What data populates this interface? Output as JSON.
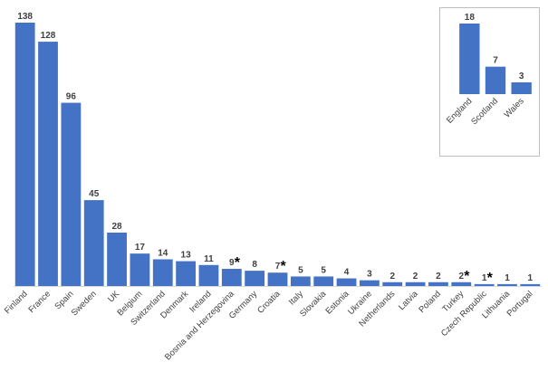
{
  "chart_data": [
    {
      "type": "bar",
      "categories": [
        "Finland",
        "France",
        "Spain",
        "Sweden",
        "UK",
        "Belgium",
        "Switzerland",
        "Denmark",
        "Ireland",
        "Bosnia and Herzegovina",
        "Germany",
        "Croatia",
        "Italy",
        "Slovakia",
        "Estonia",
        "Ukraine",
        "Netherlands",
        "Latvia",
        "Poland",
        "Turkey",
        "Czech Republic",
        "Lithuania",
        "Portugal"
      ],
      "values": [
        138,
        128,
        96,
        45,
        28,
        17,
        14,
        13,
        11,
        9,
        8,
        7,
        5,
        5,
        4,
        3,
        2,
        2,
        2,
        2,
        1,
        1,
        1
      ],
      "annotations": [
        {
          "category": "Bosnia and Herzegovina",
          "text": "*"
        },
        {
          "category": "Croatia",
          "text": "*"
        },
        {
          "category": "Turkey",
          "text": "*"
        },
        {
          "category": "Czech Republic",
          "text": "*"
        }
      ],
      "color": "#4472C4",
      "ylim": [
        0,
        138
      ],
      "grid": false
    },
    {
      "type": "bar",
      "categories": [
        "England",
        "Scotland",
        "Wales"
      ],
      "values": [
        18,
        7,
        3
      ],
      "color": "#4472C4",
      "ylim": [
        0,
        18
      ],
      "grid": false
    }
  ]
}
